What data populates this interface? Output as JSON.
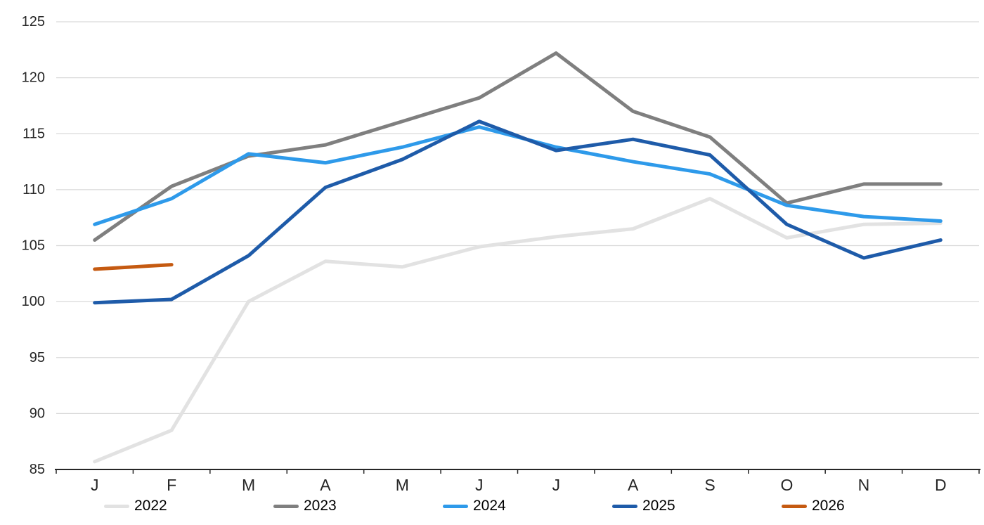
{
  "chart_data": {
    "type": "line",
    "title": "",
    "xlabel": "",
    "ylabel": "",
    "x_labels": [
      "J",
      "F",
      "M",
      "A",
      "M",
      "J",
      "J",
      "A",
      "S",
      "O",
      "N",
      "D"
    ],
    "ylim": [
      85,
      125
    ],
    "y_ticks": [
      85,
      90,
      95,
      100,
      105,
      110,
      115,
      120,
      125
    ],
    "grid": "horizontal-only",
    "legend_position": "bottom",
    "gridline_color": "#D9D9D9",
    "axis_color": "#262626",
    "series": [
      {
        "name": "2022",
        "color": "#E2E2E2",
        "values": [
          85.7,
          88.5,
          100.0,
          103.6,
          103.1,
          104.9,
          105.8,
          106.5,
          109.2,
          105.7,
          106.9,
          107.0
        ]
      },
      {
        "name": "2023",
        "color": "#7F7F7F",
        "values": [
          105.5,
          110.3,
          113.0,
          114.0,
          116.1,
          118.2,
          122.2,
          117.0,
          114.7,
          108.8,
          110.5,
          110.5
        ]
      },
      {
        "name": "2024",
        "color": "#2E9AEA",
        "values": [
          106.9,
          109.2,
          113.2,
          112.4,
          113.8,
          115.6,
          113.8,
          112.5,
          111.4,
          108.6,
          107.6,
          107.2
        ]
      },
      {
        "name": "2025",
        "color": "#1E5BA9",
        "values": [
          99.9,
          100.2,
          104.1,
          110.2,
          112.7,
          116.1,
          113.5,
          114.5,
          113.1,
          106.9,
          103.9,
          105.5
        ]
      },
      {
        "name": "2026",
        "color": "#C55A11",
        "values": [
          102.9,
          103.3,
          null,
          null,
          null,
          null,
          null,
          null,
          null,
          null,
          null,
          null
        ]
      }
    ]
  }
}
